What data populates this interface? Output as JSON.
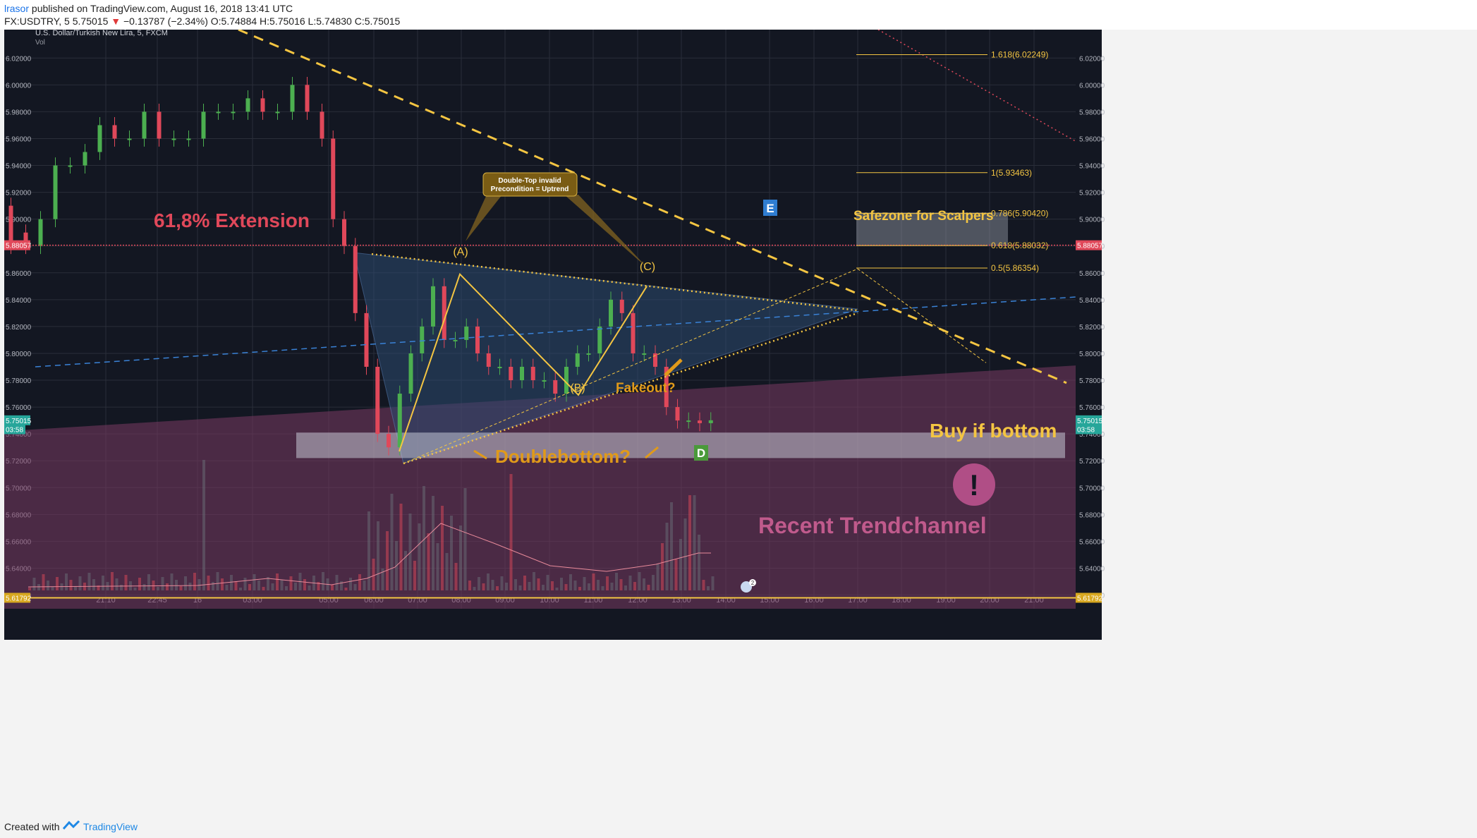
{
  "header": {
    "author": "lrasor",
    "published": "published on TradingView.com, August 16, 2018 13:41 UTC",
    "symbol_line": "FX:USDTRY, 5",
    "last": "5.75015",
    "change": "−0.13787 (−2.34%)",
    "ohlc": "O:5.74884 H:5.75016 L:5.74830 C:5.75015"
  },
  "footer": {
    "created_with": "Created with",
    "brand": "TradingView"
  },
  "colors": {
    "background": "#131722",
    "grid": "#2a2e39",
    "up": "#4caf50",
    "down": "#e0485a",
    "gold": "#f4c542",
    "orange": "#e09a1a",
    "blue_dashed": "#3a82d6",
    "triangle_fill": "#2c4a70",
    "channel_fill": "#7a3b62",
    "red_label": "#e0485a"
  },
  "chart_data": {
    "type": "candlestick",
    "title": "U.S. Dollar/Turkish New Lira, 5, FXCM",
    "subtitle": "Vol",
    "ylim": [
      5.6,
      6.03
    ],
    "y_ticks": [
      "6.02000",
      "6.00000",
      "5.98000",
      "5.96000",
      "5.94000",
      "5.92000",
      "5.90000",
      "5.88000",
      "5.86000",
      "5.84000",
      "5.82000",
      "5.80000",
      "5.78000",
      "5.76000",
      "5.74000",
      "5.72000",
      "5.70000",
      "5.68000",
      "5.66000",
      "5.64000",
      "5.62000"
    ],
    "x_ticks": [
      "21:10",
      "22:45",
      "16",
      "03:00",
      "05:00",
      "06:00",
      "07:00",
      "08:00",
      "09:00",
      "10:00",
      "11:00",
      "12:00",
      "13:00",
      "14:00",
      "15:00",
      "16:00",
      "17:00",
      "18:00",
      "19:00",
      "20:00",
      "21:00"
    ],
    "price_labels": {
      "resistance": "5.88057",
      "current": "5.75015",
      "countdown": "03:58",
      "support": "5.61792"
    },
    "fib_levels": [
      {
        "label": "1.618(6.02249)",
        "price": 6.02249
      },
      {
        "label": "1(5.93463)",
        "price": 5.93463
      },
      {
        "label": "0.786(5.90420)",
        "price": 5.9042
      },
      {
        "label": "0.618(5.88032)",
        "price": 5.88032
      },
      {
        "label": "0.5(5.86354)",
        "price": 5.86354
      }
    ],
    "pattern_points": {
      "A": "(A)",
      "B": "(B)",
      "C": "(C)"
    },
    "annotations": {
      "extension": "61,8% Extension",
      "safezone": "Safezone for Scalpers",
      "buy": "Buy if bottom",
      "doublebottom": "Doublebottom?",
      "fakeout": "Fakeout?",
      "trendchannel": "Recent Trendchannel",
      "callout_line1": "Double-Top invalid",
      "callout_line2": "Precondition = Uptrend",
      "marker_e": "E",
      "marker_d": "D",
      "exclaim": "!",
      "event_count": "2"
    },
    "candles_time": [
      "20:30",
      "20:50",
      "21:10",
      "21:30",
      "21:50",
      "22:10",
      "22:30",
      "22:50",
      "23:10",
      "23:30",
      "23:50",
      "00:10",
      "00:30",
      "00:50",
      "01:10",
      "01:30",
      "01:50",
      "02:10",
      "02:30",
      "02:50",
      "03:10",
      "03:30",
      "03:50",
      "04:10",
      "04:30",
      "04:50",
      "05:05",
      "05:20",
      "05:35",
      "05:50",
      "06:05",
      "06:20",
      "06:35",
      "06:50",
      "07:05",
      "07:20",
      "07:35",
      "07:50",
      "08:05",
      "08:20",
      "08:35",
      "08:50",
      "09:05",
      "09:20",
      "09:35",
      "09:50",
      "10:05",
      "10:20",
      "10:35",
      "10:50",
      "11:05",
      "11:20",
      "11:35",
      "11:50",
      "12:05",
      "12:20",
      "12:35",
      "12:50",
      "13:05",
      "13:20",
      "13:35"
    ],
    "candles_close": [
      5.91,
      5.96,
      5.9,
      5.91,
      5.88,
      5.88,
      5.9,
      5.94,
      5.94,
      5.95,
      5.97,
      5.96,
      5.96,
      5.98,
      5.96,
      5.96,
      5.96,
      5.98,
      5.98,
      5.98,
      5.99,
      5.98,
      5.98,
      6.0,
      5.98,
      5.96,
      5.9,
      5.88,
      5.83,
      5.79,
      5.74,
      5.73,
      5.77,
      5.8,
      5.82,
      5.85,
      5.81,
      5.81,
      5.82,
      5.8,
      5.79,
      5.79,
      5.78,
      5.79,
      5.78,
      5.78,
      5.77,
      5.79,
      5.8,
      5.8,
      5.82,
      5.84,
      5.83,
      5.8,
      5.8,
      5.79,
      5.76,
      5.75,
      5.75,
      5.748,
      5.75015
    ],
    "candles_open": [
      5.96,
      5.97,
      5.91,
      5.9,
      5.91,
      5.89,
      5.88,
      5.9,
      5.94,
      5.94,
      5.95,
      5.97,
      5.96,
      5.96,
      5.98,
      5.96,
      5.96,
      5.96,
      5.98,
      5.98,
      5.98,
      5.99,
      5.98,
      5.98,
      6.0,
      5.98,
      5.96,
      5.9,
      5.88,
      5.83,
      5.79,
      5.74,
      5.73,
      5.77,
      5.8,
      5.82,
      5.85,
      5.81,
      5.81,
      5.82,
      5.8,
      5.79,
      5.79,
      5.78,
      5.79,
      5.78,
      5.78,
      5.77,
      5.79,
      5.8,
      5.8,
      5.82,
      5.84,
      5.83,
      5.8,
      5.8,
      5.79,
      5.76,
      5.75,
      5.75,
      5.748
    ]
  }
}
